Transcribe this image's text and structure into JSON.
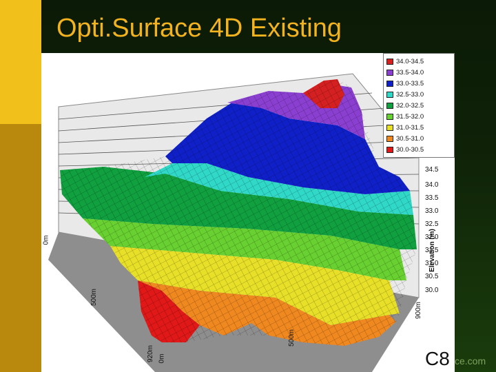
{
  "slide": {
    "title": "Opti.Surface 4D Existing",
    "number": "C8",
    "footer_partial": "ce.com"
  },
  "plot": {
    "type": "3d-surface",
    "legend": [
      {
        "label": "34.0-34.5",
        "color": "#d42020"
      },
      {
        "label": "33.5-34.0",
        "color": "#8a3fd0"
      },
      {
        "label": "33.0-33.5",
        "color": "#1020c8"
      },
      {
        "label": "32.5-33.0",
        "color": "#30d8c8"
      },
      {
        "label": "32.0-32.5",
        "color": "#10a040"
      },
      {
        "label": "31.5-32.0",
        "color": "#68d030"
      },
      {
        "label": "31.0-31.5",
        "color": "#e8e028"
      },
      {
        "label": "30.5-31.0",
        "color": "#f08820"
      },
      {
        "label": "30.0-30.5",
        "color": "#e01818"
      }
    ],
    "z_axis": {
      "label": "Elevation (m)",
      "ticks": [
        "34.5",
        "34.0",
        "33.5",
        "33.0",
        "32.5",
        "32.0",
        "31.5",
        "31.0",
        "30.5",
        "30.0"
      ]
    },
    "x_axis_ticks": [
      "0m",
      "500m",
      "920m"
    ],
    "y_axis_ticks": [
      "0m",
      "500m",
      "900m"
    ]
  }
}
